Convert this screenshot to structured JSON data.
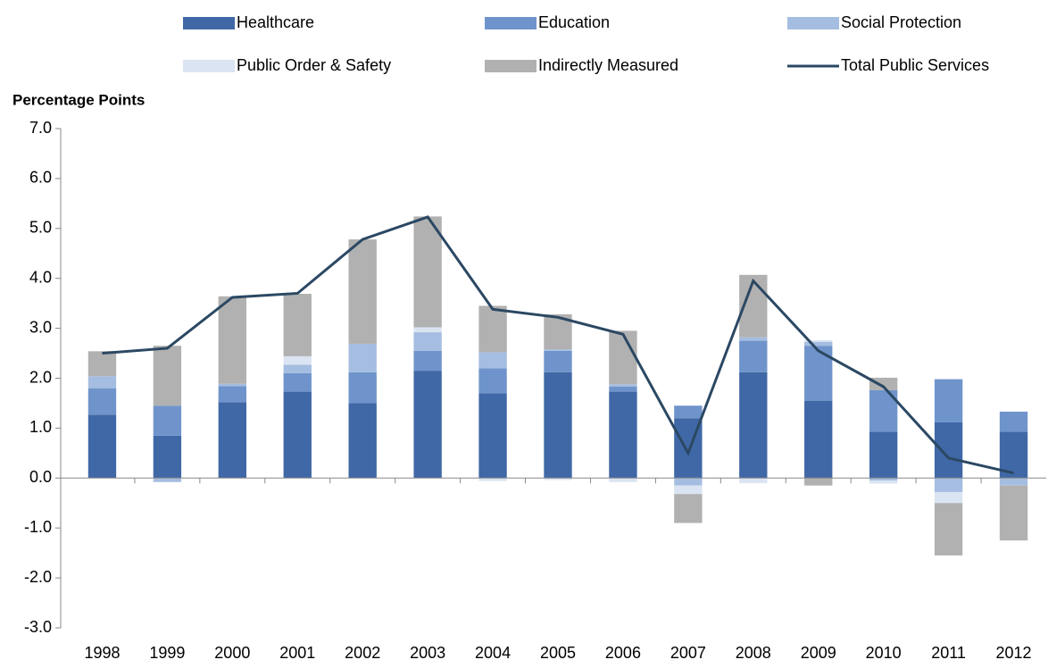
{
  "chart_data": {
    "type": "bar",
    "stacked": true,
    "y_axis_label": "Percentage Points",
    "categories": [
      "1998",
      "1999",
      "2000",
      "2001",
      "2002",
      "2003",
      "2004",
      "2005",
      "2006",
      "2007",
      "2008",
      "2009",
      "2010",
      "2011",
      "2012"
    ],
    "series": [
      {
        "name": "Healthcare",
        "color": "#4068a6",
        "values": [
          1.27,
          0.85,
          1.52,
          1.73,
          1.5,
          2.15,
          1.7,
          2.12,
          1.73,
          1.2,
          2.12,
          1.55,
          0.93,
          1.12,
          0.93
        ]
      },
      {
        "name": "Education",
        "color": "#6f94cb",
        "values": [
          0.53,
          0.6,
          0.32,
          0.37,
          0.62,
          0.4,
          0.5,
          0.43,
          0.1,
          0.25,
          0.63,
          1.1,
          0.83,
          0.86,
          0.4
        ]
      },
      {
        "name": "Social Protection",
        "color": "#a5bde0",
        "values": [
          0.24,
          -0.08,
          0.05,
          0.17,
          0.57,
          0.37,
          0.32,
          0.03,
          0.05,
          -0.15,
          0.07,
          0.08,
          -0.05,
          -0.28,
          -0.15
        ]
      },
      {
        "name": "Public Order & Safety",
        "color": "#dae4f2",
        "values": [
          0,
          0,
          0,
          0.17,
          0,
          0.1,
          -0.06,
          -0.04,
          -0.08,
          -0.17,
          -0.1,
          0.03,
          -0.06,
          -0.22,
          0
        ]
      },
      {
        "name": "Indirectly Measured",
        "color": "#b1b1b1",
        "values": [
          0.5,
          1.2,
          1.75,
          1.25,
          2.09,
          2.22,
          0.93,
          0.7,
          1.07,
          -0.58,
          1.25,
          -0.15,
          0.25,
          -1.05,
          -1.1
        ]
      },
      {
        "name": "Total Public Services",
        "type": "line",
        "color": "#2b4863",
        "values": [
          2.5,
          2.6,
          3.62,
          3.7,
          4.78,
          5.23,
          3.38,
          3.22,
          2.88,
          0.5,
          3.95,
          2.55,
          1.83,
          0.4,
          0.1
        ]
      }
    ],
    "ylim": [
      -3,
      7
    ],
    "yticks": [
      {
        "value": -3,
        "label": "-3.0"
      },
      {
        "value": -2,
        "label": "-2.0"
      },
      {
        "value": -1,
        "label": "-1.0"
      },
      {
        "value": 0,
        "label": "0.0"
      },
      {
        "value": 1,
        "label": "1.0"
      },
      {
        "value": 2,
        "label": "2.0"
      },
      {
        "value": 3,
        "label": "3.0"
      },
      {
        "value": 4,
        "label": "4.0"
      },
      {
        "value": 5,
        "label": "5.0"
      },
      {
        "value": 6,
        "label": "6.0"
      },
      {
        "value": 7,
        "label": "7.0"
      }
    ],
    "grid": false,
    "legend": "top"
  }
}
